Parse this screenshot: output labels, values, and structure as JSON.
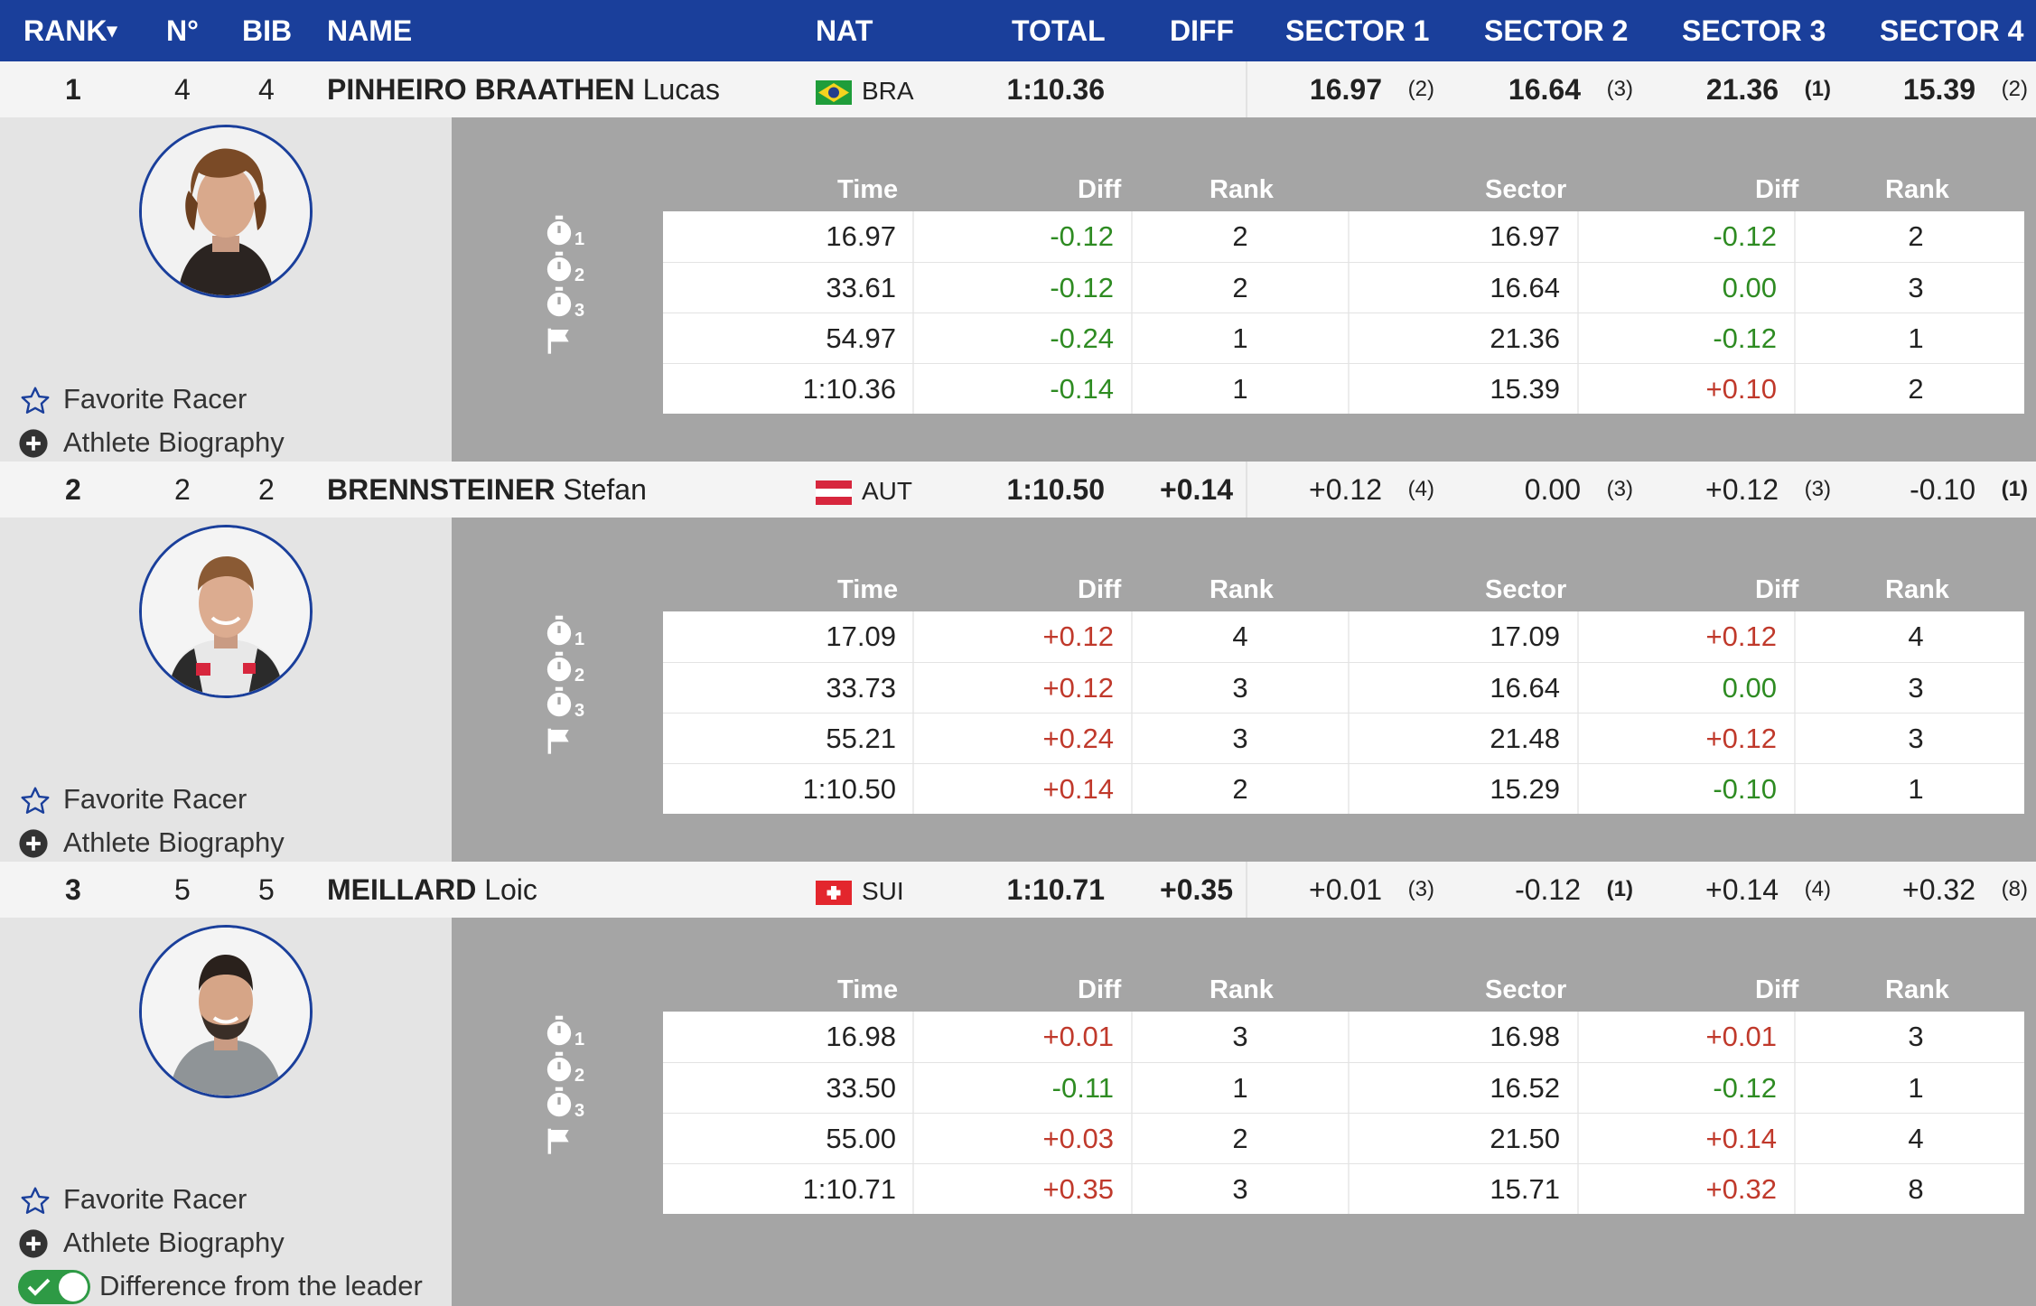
{
  "header": {
    "rank": "RANK",
    "rank_sort": "▾",
    "no": "N°",
    "bib": "BIB",
    "name": "NAME",
    "nat": "NAT",
    "total": "TOTAL",
    "diff": "DIFF",
    "s1": "SECTOR 1",
    "s2": "SECTOR 2",
    "s3": "SECTOR 3",
    "s4": "SECTOR 4"
  },
  "labels": {
    "favorite": "Favorite Racer",
    "bio": "Athlete Biography",
    "diff_leader": "Difference from the leader",
    "col_time": "Time",
    "col_diff": "Diff",
    "col_rank": "Rank",
    "col_sector": "Sector",
    "col_diff2": "Diff",
    "col_rank2": "Rank",
    "split_sub": [
      "1",
      "2",
      "3"
    ]
  },
  "colors": {
    "header_bg": "#1a3f9b",
    "positive": "#c0392b",
    "negative": "#2e8b22",
    "toggle": "#2e9a45"
  },
  "athletes": [
    {
      "rank": "1",
      "no": "4",
      "bib": "4",
      "lastname": "PINHEIRO BRAATHEN",
      "firstname": "Lucas",
      "nat": "BRA",
      "flag": "brazil-flag-icon",
      "total": "1:10.36",
      "diff": "",
      "sectors": [
        {
          "v": "16.97",
          "r": "(2)",
          "bold": true,
          "rb": false
        },
        {
          "v": "16.64",
          "r": "(3)",
          "bold": true,
          "rb": false
        },
        {
          "v": "21.36",
          "r": "(1)",
          "bold": true,
          "rb": true
        },
        {
          "v": "15.39",
          "r": "(2)",
          "bold": true,
          "rb": false
        }
      ],
      "splits": [
        {
          "time": "16.97",
          "diff": "-0.12",
          "rank": "2",
          "sector": "16.97",
          "sdiff": "-0.12",
          "srank": "2"
        },
        {
          "time": "33.61",
          "diff": "-0.12",
          "rank": "2",
          "sector": "16.64",
          "sdiff": "0.00",
          "srank": "3"
        },
        {
          "time": "54.97",
          "diff": "-0.24",
          "rank": "1",
          "sector": "21.36",
          "sdiff": "-0.12",
          "srank": "1"
        },
        {
          "time": "1:10.36",
          "diff": "-0.14",
          "rank": "1",
          "sector": "15.39",
          "sdiff": "+0.10",
          "srank": "2"
        }
      ]
    },
    {
      "rank": "2",
      "no": "2",
      "bib": "2",
      "lastname": "BRENNSTEINER",
      "firstname": "Stefan",
      "nat": "AUT",
      "flag": "austria-flag-icon",
      "total": "1:10.50",
      "diff": "+0.14",
      "sectors": [
        {
          "v": "+0.12",
          "r": "(4)",
          "bold": false,
          "rb": false
        },
        {
          "v": "0.00",
          "r": "(3)",
          "bold": false,
          "rb": false
        },
        {
          "v": "+0.12",
          "r": "(3)",
          "bold": false,
          "rb": false
        },
        {
          "v": "-0.10",
          "r": "(1)",
          "bold": false,
          "rb": true
        }
      ],
      "splits": [
        {
          "time": "17.09",
          "diff": "+0.12",
          "rank": "4",
          "sector": "17.09",
          "sdiff": "+0.12",
          "srank": "4"
        },
        {
          "time": "33.73",
          "diff": "+0.12",
          "rank": "3",
          "sector": "16.64",
          "sdiff": "0.00",
          "srank": "3"
        },
        {
          "time": "55.21",
          "diff": "+0.24",
          "rank": "3",
          "sector": "21.48",
          "sdiff": "+0.12",
          "srank": "3"
        },
        {
          "time": "1:10.50",
          "diff": "+0.14",
          "rank": "2",
          "sector": "15.29",
          "sdiff": "-0.10",
          "srank": "1"
        }
      ]
    },
    {
      "rank": "3",
      "no": "5",
      "bib": "5",
      "lastname": "MEILLARD",
      "firstname": "Loic",
      "nat": "SUI",
      "flag": "switzerland-flag-icon",
      "total": "1:10.71",
      "diff": "+0.35",
      "sectors": [
        {
          "v": "+0.01",
          "r": "(3)",
          "bold": false,
          "rb": false
        },
        {
          "v": "-0.12",
          "r": "(1)",
          "bold": false,
          "rb": true
        },
        {
          "v": "+0.14",
          "r": "(4)",
          "bold": false,
          "rb": false
        },
        {
          "v": "+0.32",
          "r": "(8)",
          "bold": false,
          "rb": false
        }
      ],
      "splits": [
        {
          "time": "16.98",
          "diff": "+0.01",
          "rank": "3",
          "sector": "16.98",
          "sdiff": "+0.01",
          "srank": "3"
        },
        {
          "time": "33.50",
          "diff": "-0.11",
          "rank": "1",
          "sector": "16.52",
          "sdiff": "-0.12",
          "srank": "1"
        },
        {
          "time": "55.00",
          "diff": "+0.03",
          "rank": "2",
          "sector": "21.50",
          "sdiff": "+0.14",
          "srank": "4"
        },
        {
          "time": "1:10.71",
          "diff": "+0.35",
          "rank": "3",
          "sector": "15.71",
          "sdiff": "+0.32",
          "srank": "8"
        }
      ]
    }
  ]
}
